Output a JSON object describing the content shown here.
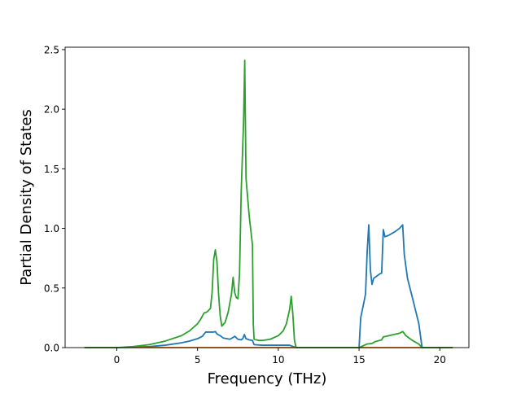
{
  "chart_data": {
    "type": "line",
    "title": "",
    "xlabel": "Frequency (THz)",
    "ylabel": "Partial Density of States",
    "xlim": [
      -3.2,
      21.8
    ],
    "ylim": [
      0.0,
      2.52
    ],
    "xticks": [
      0,
      5,
      10,
      15,
      20
    ],
    "yticks": [
      0.0,
      0.5,
      1.0,
      1.5,
      2.0,
      2.5
    ],
    "xtick_labels": [
      "0",
      "5",
      "10",
      "15",
      "20"
    ],
    "ytick_labels": [
      "0.0",
      "0.5",
      "1.0",
      "1.5",
      "2.0",
      "2.5"
    ],
    "grid": false,
    "legend": "none",
    "series": [
      {
        "color": "#1f77b4",
        "points": [
          [
            -2.0,
            0.0
          ],
          [
            0.0,
            0.0
          ],
          [
            1.0,
            0.003
          ],
          [
            2.0,
            0.008
          ],
          [
            3.0,
            0.02
          ],
          [
            4.0,
            0.04
          ],
          [
            4.5,
            0.055
          ],
          [
            5.0,
            0.075
          ],
          [
            5.3,
            0.095
          ],
          [
            5.5,
            0.13
          ],
          [
            5.8,
            0.13
          ],
          [
            6.0,
            0.13
          ],
          [
            6.1,
            0.135
          ],
          [
            6.2,
            0.115
          ],
          [
            6.4,
            0.1
          ],
          [
            6.6,
            0.08
          ],
          [
            6.8,
            0.075
          ],
          [
            7.0,
            0.07
          ],
          [
            7.2,
            0.085
          ],
          [
            7.3,
            0.095
          ],
          [
            7.5,
            0.07
          ],
          [
            7.7,
            0.065
          ],
          [
            7.8,
            0.075
          ],
          [
            7.9,
            0.11
          ],
          [
            8.0,
            0.075
          ],
          [
            8.2,
            0.065
          ],
          [
            8.4,
            0.06
          ],
          [
            8.5,
            0.025
          ],
          [
            9.0,
            0.02
          ],
          [
            10.0,
            0.02
          ],
          [
            10.7,
            0.02
          ],
          [
            10.9,
            0.01
          ],
          [
            11.1,
            0.0
          ],
          [
            15.0,
            0.0
          ],
          [
            15.1,
            0.25
          ],
          [
            15.3,
            0.38
          ],
          [
            15.4,
            0.45
          ],
          [
            15.5,
            0.8
          ],
          [
            15.6,
            1.03
          ],
          [
            15.7,
            0.65
          ],
          [
            15.8,
            0.53
          ],
          [
            15.9,
            0.58
          ],
          [
            16.1,
            0.6
          ],
          [
            16.3,
            0.62
          ],
          [
            16.4,
            0.625
          ],
          [
            16.5,
            0.99
          ],
          [
            16.6,
            0.93
          ],
          [
            16.8,
            0.94
          ],
          [
            17.2,
            0.97
          ],
          [
            17.5,
            1.0
          ],
          [
            17.7,
            1.03
          ],
          [
            17.8,
            0.78
          ],
          [
            18.0,
            0.58
          ],
          [
            18.3,
            0.42
          ],
          [
            18.7,
            0.2
          ],
          [
            18.9,
            0.0
          ],
          [
            20.8,
            0.0
          ]
        ]
      },
      {
        "color": "#ff7f0e",
        "points": [
          [
            -2.0,
            0.0
          ],
          [
            20.8,
            0.0
          ]
        ]
      },
      {
        "color": "#2ca02c",
        "points": [
          [
            -2.0,
            0.0
          ],
          [
            0.0,
            0.0
          ],
          [
            1.0,
            0.008
          ],
          [
            2.0,
            0.025
          ],
          [
            3.0,
            0.055
          ],
          [
            4.0,
            0.1
          ],
          [
            4.5,
            0.14
          ],
          [
            5.0,
            0.2
          ],
          [
            5.2,
            0.24
          ],
          [
            5.4,
            0.29
          ],
          [
            5.6,
            0.3
          ],
          [
            5.8,
            0.33
          ],
          [
            5.9,
            0.46
          ],
          [
            6.0,
            0.74
          ],
          [
            6.1,
            0.82
          ],
          [
            6.2,
            0.72
          ],
          [
            6.3,
            0.45
          ],
          [
            6.4,
            0.27
          ],
          [
            6.5,
            0.18
          ],
          [
            6.7,
            0.21
          ],
          [
            6.9,
            0.3
          ],
          [
            7.1,
            0.45
          ],
          [
            7.2,
            0.59
          ],
          [
            7.3,
            0.46
          ],
          [
            7.4,
            0.42
          ],
          [
            7.5,
            0.41
          ],
          [
            7.6,
            0.62
          ],
          [
            7.7,
            1.3
          ],
          [
            7.85,
            1.9
          ],
          [
            7.92,
            2.41
          ],
          [
            8.0,
            1.42
          ],
          [
            8.2,
            1.1
          ],
          [
            8.4,
            0.86
          ],
          [
            8.45,
            0.2
          ],
          [
            8.5,
            0.07
          ],
          [
            8.8,
            0.06
          ],
          [
            9.0,
            0.06
          ],
          [
            9.5,
            0.07
          ],
          [
            10.0,
            0.1
          ],
          [
            10.3,
            0.14
          ],
          [
            10.5,
            0.2
          ],
          [
            10.7,
            0.32
          ],
          [
            10.8,
            0.43
          ],
          [
            10.9,
            0.28
          ],
          [
            11.0,
            0.06
          ],
          [
            11.1,
            0.0
          ],
          [
            15.0,
            0.0
          ],
          [
            15.5,
            0.03
          ],
          [
            15.8,
            0.035
          ],
          [
            16.0,
            0.05
          ],
          [
            16.4,
            0.065
          ],
          [
            16.5,
            0.09
          ],
          [
            17.0,
            0.105
          ],
          [
            17.5,
            0.12
          ],
          [
            17.7,
            0.135
          ],
          [
            17.9,
            0.1
          ],
          [
            18.3,
            0.06
          ],
          [
            18.7,
            0.03
          ],
          [
            18.9,
            0.0
          ],
          [
            20.8,
            0.0
          ]
        ]
      }
    ]
  }
}
